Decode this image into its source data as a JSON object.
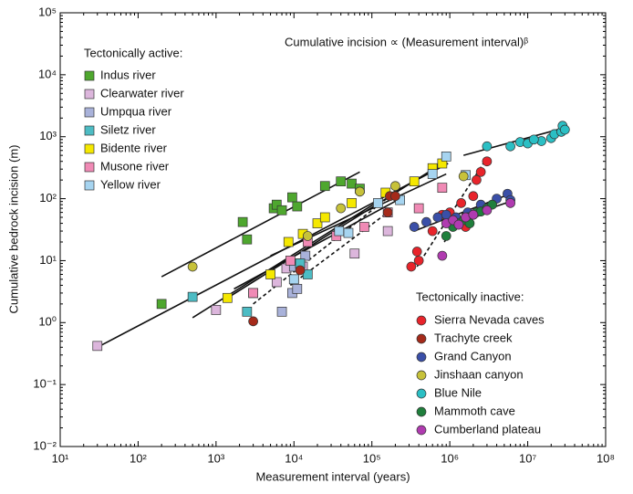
{
  "chart_data": {
    "type": "scatter",
    "log_x": true,
    "log_y": true,
    "annotation": "Cumulative incision ∝ (Measurement interval)ᵝ",
    "x_label": "Measurement interval (years)",
    "y_label": "Cumulative bedrock incision (m)",
    "xlim": [
      10,
      100000000
    ],
    "ylim": [
      0.01,
      100000
    ],
    "xticks": [
      {
        "value": 10,
        "label": "10¹"
      },
      {
        "value": 100,
        "label": "10²"
      },
      {
        "value": 1000,
        "label": "10³"
      },
      {
        "value": 10000,
        "label": "10⁴"
      },
      {
        "value": 100000,
        "label": "10⁵"
      },
      {
        "value": 1000000,
        "label": "10⁶"
      },
      {
        "value": 10000000,
        "label": "10⁷"
      },
      {
        "value": 100000000,
        "label": "10⁸"
      }
    ],
    "yticks": [
      {
        "value": 0.01,
        "label": "10⁻²"
      },
      {
        "value": 0.1,
        "label": "10⁻¹"
      },
      {
        "value": 1,
        "label": "10⁰"
      },
      {
        "value": 10,
        "label": "10¹"
      },
      {
        "value": 100,
        "label": "10²"
      },
      {
        "value": 1000,
        "label": "10³"
      },
      {
        "value": 10000,
        "label": "10⁴"
      },
      {
        "value": 100000,
        "label": "10⁵"
      }
    ],
    "legend_titles": [
      "Tectonically active:",
      "Tectonically inactive:"
    ],
    "series": [
      {
        "name": "Indus river",
        "group": 0,
        "marker": "square",
        "color": "#4ea72e",
        "x": [
          200,
          2200,
          2500,
          5500,
          6000,
          7000,
          9500,
          11000,
          25000,
          40000,
          55000,
          70000
        ],
        "values": [
          2,
          42,
          22,
          70,
          80,
          65,
          105,
          75,
          160,
          190,
          175,
          145
        ]
      },
      {
        "name": "Clearwater river",
        "group": 0,
        "marker": "square",
        "color": "#dcb6dc",
        "x": [
          30,
          1000,
          3000,
          6000,
          8000,
          13000,
          60000,
          160000
        ],
        "values": [
          0.42,
          1.6,
          3,
          4.5,
          7.5,
          8,
          13,
          30
        ]
      },
      {
        "name": "Umpqua river",
        "group": 0,
        "marker": "square",
        "color": "#a9b2da",
        "x": [
          7000,
          9500,
          11000,
          10000,
          12000,
          14000
        ],
        "values": [
          1.5,
          3,
          3.5,
          8,
          9,
          12
        ]
      },
      {
        "name": "Siletz river",
        "group": 0,
        "marker": "square",
        "color": "#4dbcc4",
        "x": [
          500,
          2500,
          10000,
          15000,
          12000
        ],
        "values": [
          2.6,
          1.5,
          5,
          6,
          9
        ]
      },
      {
        "name": "Bidente river",
        "group": 0,
        "marker": "square",
        "color": "#f5e800",
        "x": [
          1400,
          5000,
          8500,
          13000,
          20000,
          25000,
          55000,
          150000,
          350000,
          600000,
          800000
        ],
        "values": [
          2.5,
          6,
          20,
          27,
          40,
          50,
          85,
          125,
          190,
          310,
          370
        ]
      },
      {
        "name": "Musone river",
        "group": 0,
        "marker": "square",
        "color": "#f08ab5",
        "x": [
          3000,
          9000,
          15000,
          35000,
          80000,
          160000,
          400000,
          800000
        ],
        "values": [
          3,
          10,
          20,
          25,
          35,
          60,
          70,
          150
        ]
      },
      {
        "name": "Yellow river",
        "group": 0,
        "marker": "square",
        "color": "#a6d4f0",
        "x": [
          10000,
          38000,
          50000,
          120000,
          230000,
          600000,
          900000,
          1600000
        ],
        "values": [
          5,
          30,
          28,
          85,
          95,
          250,
          480,
          240
        ]
      },
      {
        "name": "Sierra Nevada caves",
        "group": 1,
        "marker": "circle",
        "color": "#e8242b",
        "x": [
          320000,
          380000,
          400000,
          600000,
          800000,
          1000000,
          1400000,
          2200000,
          2500000,
          2000000,
          3000000,
          1600000
        ],
        "values": [
          8,
          14,
          10,
          30,
          55,
          60,
          85,
          200,
          270,
          110,
          400,
          35
        ]
      },
      {
        "name": "Trachyte creek",
        "group": 1,
        "marker": "circle",
        "color": "#a52a1a",
        "x": [
          3000,
          12000,
          170000,
          200000,
          160000
        ],
        "values": [
          1.05,
          7,
          110,
          110,
          60
        ]
      },
      {
        "name": "Grand Canyon",
        "group": 1,
        "marker": "circle",
        "color": "#3a4fa8",
        "x": [
          350000,
          500000,
          700000,
          900000,
          1200000,
          1700000,
          2500000,
          4000000,
          5500000,
          6000000
        ],
        "values": [
          35,
          42,
          50,
          55,
          50,
          60,
          80,
          100,
          120,
          95
        ]
      },
      {
        "name": "Jinshaan canyon",
        "group": 1,
        "marker": "circle",
        "color": "#c7c23a",
        "x": [
          500,
          15000,
          40000,
          70000,
          200000,
          1500000
        ],
        "values": [
          8,
          25,
          70,
          130,
          160,
          230
        ]
      },
      {
        "name": "Blue Nile",
        "group": 1,
        "marker": "circle",
        "color": "#2bbfc4",
        "x": [
          3000000,
          6000000,
          8000000,
          10000000,
          15000000,
          20000000,
          22000000,
          27000000,
          28000000,
          30000000,
          12000000
        ],
        "values": [
          700,
          700,
          820,
          780,
          850,
          950,
          1100,
          1200,
          1500,
          1300,
          900
        ]
      },
      {
        "name": "Mammoth cave",
        "group": 1,
        "marker": "circle",
        "color": "#1f7f3c",
        "x": [
          900000,
          1100000,
          1300000,
          1500000,
          1700000,
          2000000,
          2200000,
          2500000,
          3000000,
          3500000,
          1800000
        ],
        "values": [
          25,
          35,
          40,
          45,
          50,
          55,
          60,
          62,
          70,
          80,
          40
        ]
      },
      {
        "name": "Cumberland plateau",
        "group": 1,
        "marker": "circle",
        "color": "#b03bb0",
        "x": [
          800000,
          900000,
          1100000,
          1300000,
          1600000,
          2000000,
          3000000,
          6000000
        ],
        "values": [
          12,
          40,
          45,
          38,
          50,
          55,
          65,
          85
        ]
      }
    ],
    "trend_lines": [
      {
        "x": [
          200,
          70000
        ],
        "y": [
          5.5,
          270
        ],
        "dashed": false
      },
      {
        "x": [
          30,
          950000
        ],
        "y": [
          0.4,
          370
        ],
        "dashed": false
      },
      {
        "x": [
          500,
          120000
        ],
        "y": [
          1.2,
          90
        ],
        "dashed": false
      },
      {
        "x": [
          1400,
          800000
        ],
        "y": [
          2.5,
          370
        ],
        "dashed": false
      },
      {
        "x": [
          1700,
          230000
        ],
        "y": [
          3.5,
          100
        ],
        "dashed": false
      },
      {
        "x": [
          5000,
          900000
        ],
        "y": [
          12,
          250
        ],
        "dashed": false
      },
      {
        "x": [
          3000,
          170000
        ],
        "y": [
          2,
          110
        ],
        "dashed": true
      },
      {
        "x": [
          9000,
          160000
        ],
        "y": [
          4,
          60
        ],
        "dashed": true
      },
      {
        "x": [
          380000,
          2800000
        ],
        "y": [
          8,
          400
        ],
        "dashed": true
      },
      {
        "x": [
          850000,
          1500000
        ],
        "y": [
          20,
          60
        ],
        "dashed": true
      },
      {
        "x": [
          350000,
          6000000
        ],
        "y": [
          30,
          120
        ],
        "dashed": false
      },
      {
        "x": [
          900000,
          6000000
        ],
        "y": [
          40,
          90
        ],
        "dashed": false
      },
      {
        "x": [
          1500000,
          30000000
        ],
        "y": [
          500,
          1400
        ],
        "dashed": false
      }
    ]
  }
}
